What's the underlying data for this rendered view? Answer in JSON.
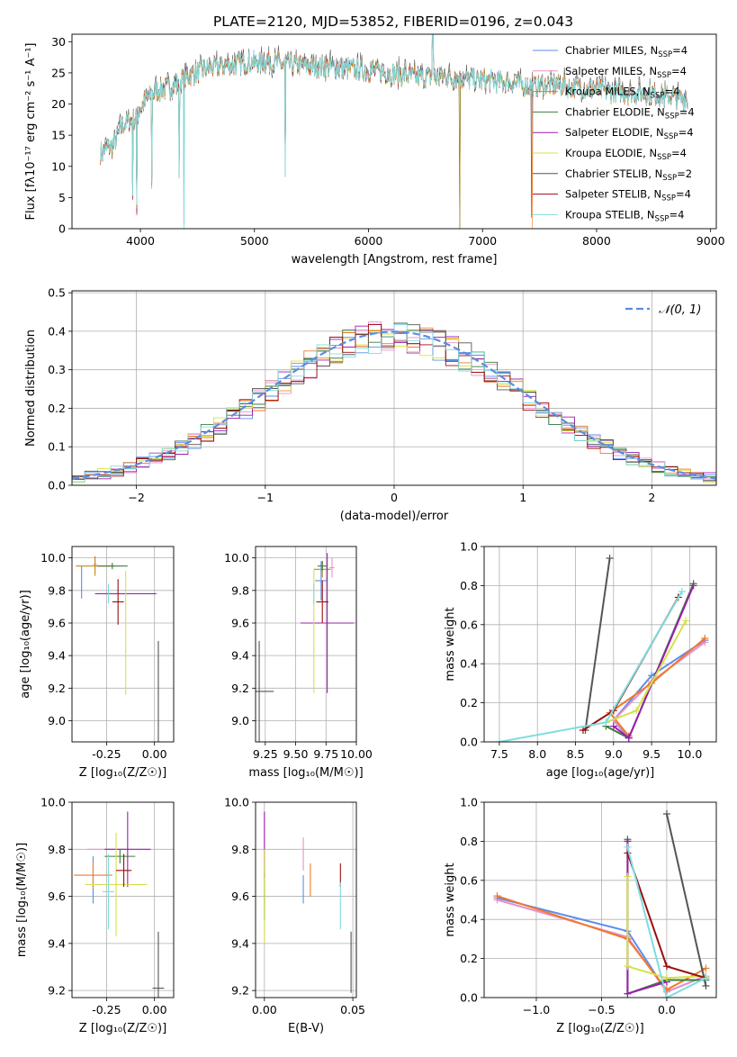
{
  "figure_title": "PLATE=2120, MJD=53852, FIBERID=0196, z=0.043",
  "colors": {
    "Chabrier MILES": "#5b8def",
    "Salpeter MILES": "#ea8fc9",
    "Kroupa MILES": "#c88a10",
    "Chabrier ELODIE": "#3e7d3e",
    "Salpeter ELODIE": "#9b1fae",
    "Kroupa ELODIE": "#d7e04a",
    "Chabrier STELIB": "#555555",
    "Salpeter STELIB": "#9b0d0d",
    "Kroupa STELIB": "#7fdde0",
    "orange": "#ef7a2a",
    "normal": "#5b8de0"
  },
  "chart_data": [
    {
      "id": "spectrum",
      "type": "line",
      "xlabel": "wavelength [Angstrom, rest frame]",
      "ylabel": "Flux [fλ10⁻¹⁷ erg cm⁻² s⁻¹ A⁻¹]",
      "xlim": [
        3400,
        9050
      ],
      "ylim": [
        0,
        31.2
      ],
      "xticks": [
        4000,
        5000,
        6000,
        7000,
        8000,
        9000
      ],
      "yticks": [
        0,
        5,
        10,
        15,
        20,
        25,
        30
      ],
      "legend": [
        "Chabrier MILES, N_SSP=4",
        "Salpeter MILES, N_SSP=4",
        "Kroupa MILES, N_SSP=4",
        "Chabrier ELODIE, N_SSP=4",
        "Salpeter ELODIE, N_SSP=4",
        "Kroupa ELODIE, N_SSP=4",
        "Chabrier STELIB, N_SSP=2",
        "Salpeter STELIB, N_SSP=4",
        "Kroupa STELIB, N_SSP=4"
      ],
      "legend_text": [
        "Chabrier MILES, N",
        "Salpeter MILES, N",
        "Kroupa MILES, N",
        "Chabrier ELODIE, N",
        "Salpeter ELODIE, N",
        "Kroupa ELODIE, N",
        "Chabrier STELIB, N",
        "Salpeter STELIB, N",
        "Kroupa STELIB, N"
      ],
      "legend_sub": "SSP",
      "legend_n": [
        "=4",
        "=4",
        "=4",
        "=4",
        "=4",
        "=4",
        "=2",
        "=4",
        "=4"
      ],
      "legend_loc": "upper right",
      "continuum": {
        "x": [
          3650,
          3750,
          3850,
          3950,
          4050,
          4150,
          4300,
          4450,
          4600,
          4800,
          5000,
          5200,
          5400,
          5600,
          5800,
          6000,
          6200,
          6400,
          6600,
          6800,
          7000,
          7200,
          7400,
          7600,
          7800,
          8000,
          8200,
          8400,
          8600,
          8800
        ],
        "y": [
          12.5,
          13.5,
          17,
          18,
          21,
          22.5,
          23.2,
          25,
          26,
          26.6,
          27,
          26.8,
          26.5,
          26.2,
          26,
          25.6,
          25.2,
          24.6,
          24.6,
          24.4,
          24,
          23.8,
          23.2,
          23.3,
          23,
          22.5,
          22.2,
          22,
          21.6,
          21
        ]
      },
      "spikes": {
        "x": [
          3934,
          3969,
          4102,
          4340,
          4384,
          5270,
          6563,
          6800,
          7430
        ],
        "y": [
          4.5,
          2,
          6,
          8,
          0,
          8,
          31,
          0,
          0
        ]
      }
    },
    {
      "id": "residual_hist",
      "type": "line",
      "xlabel": "(data-model)/error",
      "ylabel": "Normed distribution",
      "xlim": [
        -2.5,
        2.5
      ],
      "ylim": [
        0,
        0.505
      ],
      "xticks": [
        -2,
        -1,
        0,
        1,
        2
      ],
      "yticks": [
        0,
        0.1,
        0.2,
        0.3,
        0.4,
        0.5
      ],
      "grid": true,
      "legend": [
        "𝒩(0, 1)"
      ],
      "legend_loc": "upper right",
      "bin_width": 0.1,
      "approx_distribution": "normal (0,1) with bin-to-bin scatter"
    },
    {
      "id": "Z_vs_age",
      "type": "scatter",
      "xlabel": "Z [log₁₀(Z/Z☉)]",
      "ylabel": "age [log₁₀(age/yr)]",
      "xlim": [
        -0.43,
        0.1
      ],
      "ylim": [
        8.87,
        10.07
      ],
      "xticks": [
        -0.25,
        0.0
      ],
      "yticks": [
        9.0,
        9.2,
        9.4,
        9.6,
        9.8,
        10.0
      ],
      "points": [
        {
          "model": "Chabrier MILES",
          "x": -0.38,
          "y": 9.85,
          "xerr": 0.0,
          "yerr": 0.1
        },
        {
          "model": "Salpeter MILES",
          "x": -0.31,
          "y": 9.96,
          "xerr": 0.01,
          "yerr": 0.05
        },
        {
          "model": "Kroupa MILES",
          "x": -0.31,
          "y": 9.95,
          "xerr": 0.1,
          "yerr": 0.06
        },
        {
          "model": "Chabrier ELODIE",
          "x": -0.22,
          "y": 9.95,
          "xerr": 0.08,
          "yerr": 0.02
        },
        {
          "model": "Salpeter ELODIE",
          "x": -0.15,
          "y": 9.78,
          "xerr": 0.16,
          "yerr": 0.0
        },
        {
          "model": "Kroupa ELODIE",
          "x": -0.15,
          "y": 9.54,
          "xerr": 0.0,
          "yerr": 0.38
        },
        {
          "model": "Chabrier STELIB",
          "x": 0.02,
          "y": 9.17,
          "xerr": 0.0,
          "yerr": 0.32
        },
        {
          "model": "Salpeter STELIB",
          "x": -0.19,
          "y": 9.73,
          "xerr": 0.03,
          "yerr": 0.14
        },
        {
          "model": "Kroupa STELIB",
          "x": -0.24,
          "y": 9.78,
          "xerr": 0.0,
          "yerr": 0.06
        }
      ]
    },
    {
      "id": "mass_vs_age",
      "type": "scatter",
      "xlabel": "mass [log₁₀(M/M☉)]",
      "ylabel": "",
      "xlim": [
        9.17,
        10.0
      ],
      "ylim": [
        8.87,
        10.07
      ],
      "xticks": [
        9.25,
        9.5,
        9.75,
        10.0
      ],
      "yticks": [
        9.0,
        9.2,
        9.4,
        9.6,
        9.8,
        10.0
      ],
      "points": [
        {
          "model": "Chabrier MILES",
          "x": 9.71,
          "y": 9.86,
          "xerr": 0.05,
          "yerr": 0.12
        },
        {
          "model": "Salpeter MILES",
          "x": 9.8,
          "y": 9.94,
          "xerr": 0.02,
          "yerr": 0.06
        },
        {
          "model": "Kroupa MILES",
          "x": 9.72,
          "y": 9.93,
          "xerr": 0.07,
          "yerr": 0.05
        },
        {
          "model": "Chabrier ELODIE",
          "x": 9.72,
          "y": 9.95,
          "xerr": 0.04,
          "yerr": 0.03
        },
        {
          "model": "Salpeter ELODIE",
          "x": 9.76,
          "y": 9.6,
          "xerr": 0.22,
          "yerr": 0.43
        },
        {
          "model": "Kroupa ELODIE",
          "x": 9.65,
          "y": 9.55,
          "xerr": 0.0,
          "yerr": 0.38
        },
        {
          "model": "Chabrier STELIB",
          "x": 9.2,
          "y": 9.18,
          "xerr": 0.12,
          "yerr": 0.31
        },
        {
          "model": "Salpeter STELIB",
          "x": 9.72,
          "y": 9.73,
          "xerr": 0.05,
          "yerr": 0.13
        },
        {
          "model": "Kroupa STELIB",
          "x": 9.65,
          "y": 9.78,
          "xerr": 0.0,
          "yerr": 0.06
        }
      ]
    },
    {
      "id": "age_vs_massweight",
      "type": "line",
      "xlabel": "age  [log₁₀(age/yr)]",
      "ylabel": "mass weight",
      "xlim": [
        7.3,
        10.35
      ],
      "ylim": [
        0,
        1.0
      ],
      "xticks": [
        7.5,
        8.0,
        8.5,
        9.0,
        9.5,
        10.0
      ],
      "yticks": [
        0.0,
        0.2,
        0.4,
        0.6,
        0.8,
        1.0
      ],
      "grid": true,
      "series": [
        {
          "model": "Chabrier MILES",
          "x": [
            9.2,
            9.0,
            9.5,
            10.2
          ],
          "y": [
            0.02,
            0.11,
            0.34,
            0.52
          ]
        },
        {
          "model": "Salpeter MILES",
          "x": [
            9.2,
            9.0,
            9.5,
            10.2
          ],
          "y": [
            0.03,
            0.11,
            0.31,
            0.51
          ]
        },
        {
          "model": "orange",
          "x": [
            9.2,
            8.95,
            9.5,
            10.2
          ],
          "y": [
            0.03,
            0.15,
            0.3,
            0.53
          ]
        },
        {
          "model": "Chabrier ELODIE",
          "x": [
            8.9,
            9.2,
            10.05
          ],
          "y": [
            0.08,
            0.02,
            0.81
          ]
        },
        {
          "model": "Salpeter ELODIE",
          "x": [
            9.0,
            9.2,
            10.05
          ],
          "y": [
            0.08,
            0.02,
            0.8
          ]
        },
        {
          "model": "Kroupa ELODIE",
          "x": [
            8.9,
            9.3,
            9.95
          ],
          "y": [
            0.1,
            0.16,
            0.62
          ]
        },
        {
          "model": "Chabrier STELIB",
          "x": [
            8.63,
            8.95
          ],
          "y": [
            0.06,
            0.94
          ]
        },
        {
          "model": "Salpeter STELIB",
          "x": [
            8.6,
            9.0,
            9.85
          ],
          "y": [
            0.06,
            0.16,
            0.74
          ]
        },
        {
          "model": "Kroupa STELIB",
          "x": [
            7.5,
            8.9,
            9.9
          ],
          "y": [
            0.0,
            0.1,
            0.77
          ]
        }
      ]
    },
    {
      "id": "Z_vs_mass",
      "type": "scatter",
      "xlabel": "Z [log₁₀(Z/Z☉)]",
      "ylabel": "mass [log₁₀(M/M☉)]",
      "xlim": [
        -0.43,
        0.1
      ],
      "ylim": [
        9.17,
        10.0
      ],
      "xticks": [
        -0.25,
        0.0
      ],
      "yticks": [
        9.2,
        9.4,
        9.6,
        9.8,
        10.0
      ],
      "points": [
        {
          "model": "Chabrier MILES",
          "x": -0.32,
          "y": 9.67,
          "xerr": 0.0,
          "yerr": 0.1
        },
        {
          "model": "Salpeter MILES",
          "x": -0.25,
          "y": 9.8,
          "xerr": 0.1,
          "yerr": 0.0
        },
        {
          "model": "orange",
          "x": -0.32,
          "y": 9.69,
          "xerr": 0.1,
          "yerr": 0.06
        },
        {
          "model": "Chabrier ELODIE",
          "x": -0.18,
          "y": 9.77,
          "xerr": 0.08,
          "yerr": 0.03
        },
        {
          "model": "Salpeter ELODIE",
          "x": -0.14,
          "y": 9.8,
          "xerr": 0.12,
          "yerr": 0.16
        },
        {
          "model": "Kroupa ELODIE",
          "x": -0.2,
          "y": 9.65,
          "xerr": 0.16,
          "yerr": 0.22
        },
        {
          "model": "Chabrier STELIB",
          "x": 0.02,
          "y": 9.21,
          "xerr": 0.03,
          "yerr": 0.24
        },
        {
          "model": "Salpeter STELIB",
          "x": -0.16,
          "y": 9.71,
          "xerr": 0.04,
          "yerr": 0.07
        },
        {
          "model": "Kroupa STELIB",
          "x": -0.24,
          "y": 9.62,
          "xerr": 0.03,
          "yerr": 0.16
        }
      ]
    },
    {
      "id": "EBV_vs_mass",
      "type": "scatter",
      "xlabel": "E(B-V)",
      "ylabel": "",
      "xlim": [
        -0.005,
        0.052
      ],
      "ylim": [
        9.17,
        10.0
      ],
      "xticks": [
        0.0,
        0.05
      ],
      "yticks": [
        9.2,
        9.4,
        9.6,
        9.8,
        10.0
      ],
      "points": [
        {
          "model": "Chabrier MILES",
          "x": 0.022,
          "y": 9.63,
          "xerr": 0.0,
          "yerr": 0.06
        },
        {
          "model": "Salpeter MILES",
          "x": 0.022,
          "y": 9.78,
          "xerr": 0.0,
          "yerr": 0.07
        },
        {
          "model": "orange",
          "x": 0.026,
          "y": 9.67,
          "xerr": 0.0,
          "yerr": 0.07
        },
        {
          "model": "Chabrier ELODIE",
          "x": 0.0,
          "y": 9.6,
          "xerr": 0.0,
          "yerr": 0.1
        },
        {
          "model": "Salpeter ELODIE",
          "x": 0.0,
          "y": 9.82,
          "xerr": 0.0,
          "yerr": 0.14
        },
        {
          "model": "Kroupa ELODIE",
          "x": 0.0,
          "y": 9.6,
          "xerr": 0.0,
          "yerr": 0.2
        },
        {
          "model": "Chabrier STELIB",
          "x": 0.049,
          "y": 9.32,
          "xerr": 0.0,
          "yerr": 0.13
        },
        {
          "model": "Salpeter STELIB",
          "x": 0.043,
          "y": 9.69,
          "xerr": 0.0,
          "yerr": 0.05
        },
        {
          "model": "Kroupa STELIB",
          "x": 0.043,
          "y": 9.56,
          "xerr": 0.0,
          "yerr": 0.1
        }
      ]
    },
    {
      "id": "Z_vs_massweight",
      "type": "line",
      "xlabel": "Z [log₁₀(Z/Z☉)]",
      "ylabel": "mass weight",
      "xlim": [
        -1.4,
        0.38
      ],
      "ylim": [
        0,
        1.0
      ],
      "xticks": [
        -1.0,
        -0.5,
        0.0
      ],
      "yticks": [
        0.0,
        0.2,
        0.4,
        0.6,
        0.8,
        1.0
      ],
      "grid": true,
      "series": [
        {
          "model": "Chabrier MILES",
          "x": [
            -1.3,
            -0.3,
            0.0,
            0.3
          ],
          "y": [
            0.51,
            0.34,
            0.03,
            0.11
          ]
        },
        {
          "model": "Salpeter MILES",
          "x": [
            -1.3,
            -0.3,
            0.0,
            0.3
          ],
          "y": [
            0.5,
            0.31,
            0.03,
            0.11
          ]
        },
        {
          "model": "orange",
          "x": [
            -1.3,
            -0.3,
            0.0,
            0.3
          ],
          "y": [
            0.52,
            0.3,
            0.04,
            0.15
          ]
        },
        {
          "model": "Chabrier ELODIE",
          "x": [
            -0.3,
            -0.3,
            0.0,
            0.3
          ],
          "y": [
            0.81,
            0.02,
            0.09,
            0.09
          ]
        },
        {
          "model": "Salpeter ELODIE",
          "x": [
            -0.3,
            -0.3,
            0.0
          ],
          "y": [
            0.8,
            0.02,
            0.08
          ]
        },
        {
          "model": "Kroupa ELODIE",
          "x": [
            -0.3,
            -0.3,
            0.0,
            0.3
          ],
          "y": [
            0.62,
            0.16,
            0.1,
            0.11
          ]
        },
        {
          "model": "Chabrier STELIB",
          "x": [
            0.0,
            0.3
          ],
          "y": [
            0.94,
            0.06
          ]
        },
        {
          "model": "Salpeter STELIB",
          "x": [
            -0.3,
            0.0,
            0.3
          ],
          "y": [
            0.74,
            0.16,
            0.1
          ]
        },
        {
          "model": "Kroupa STELIB",
          "x": [
            -0.3,
            0.0,
            0.3
          ],
          "y": [
            0.77,
            0.0,
            0.1
          ]
        }
      ]
    }
  ]
}
